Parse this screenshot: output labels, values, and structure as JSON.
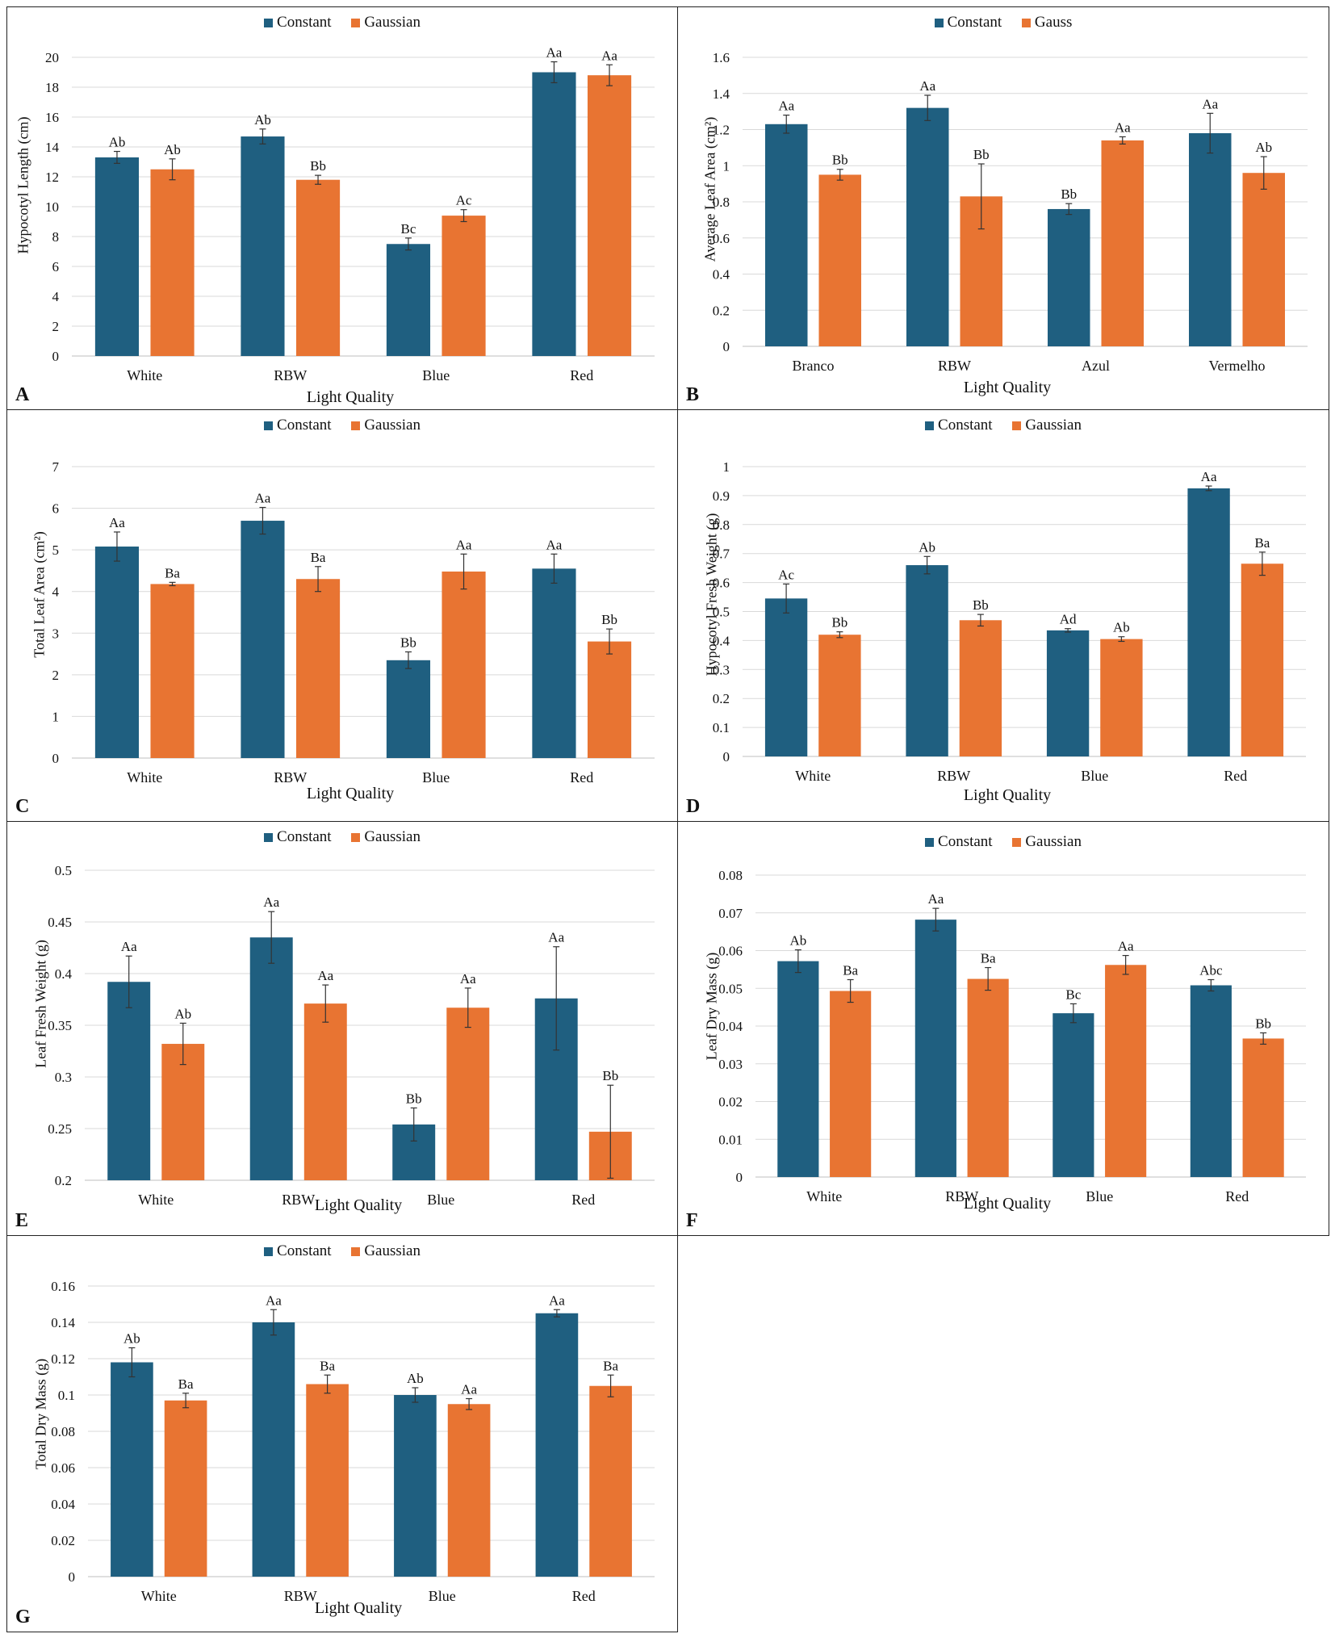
{
  "colors": {
    "constant": "#1f5f80",
    "gaussian": "#e87432",
    "grid": "#d9d9d9",
    "axis": "#bfbfbf"
  },
  "chart_data": [
    {
      "type": "bar",
      "panel": "A",
      "ylabel": "Hypocotyl Length (cm)",
      "xlabel": "Light Quality",
      "legend": [
        "Constant",
        "Gaussian"
      ],
      "categories": [
        "White",
        "RBW",
        "Blue",
        "Red"
      ],
      "ylim": [
        0,
        20
      ],
      "ystep": 2,
      "decimals": 0,
      "series": [
        {
          "name": "Constant",
          "values": [
            13.3,
            14.7,
            7.5,
            19.0
          ],
          "errors": [
            0.4,
            0.5,
            0.4,
            0.7
          ],
          "labels": [
            "Ab",
            "Ab",
            "Bc",
            "Aa"
          ]
        },
        {
          "name": "Gaussian",
          "values": [
            12.5,
            11.8,
            9.4,
            18.8
          ],
          "errors": [
            0.7,
            0.3,
            0.4,
            0.7
          ],
          "labels": [
            "Ab",
            "Bb",
            "Ac",
            "Aa"
          ]
        }
      ]
    },
    {
      "type": "bar",
      "panel": "B",
      "ylabel": "Average Leaf Area (cm²)",
      "xlabel": "Light Quality",
      "legend": [
        "Constant",
        "Gauss"
      ],
      "categories": [
        "Branco",
        "RBW",
        "Azul",
        "Vermelho"
      ],
      "ylim": [
        0,
        1.6
      ],
      "ystep": 0.2,
      "decimals": 1,
      "series": [
        {
          "name": "Constant",
          "values": [
            1.23,
            1.32,
            0.76,
            1.18
          ],
          "errors": [
            0.05,
            0.07,
            0.03,
            0.11
          ],
          "labels": [
            "Aa",
            "Aa",
            "Bb",
            "Aa"
          ]
        },
        {
          "name": "Gauss",
          "values": [
            0.95,
            0.83,
            1.14,
            0.96
          ],
          "errors": [
            0.03,
            0.18,
            0.02,
            0.09
          ],
          "labels": [
            "Bb",
            "Bb",
            "Aa",
            "Ab"
          ]
        }
      ]
    },
    {
      "type": "bar",
      "panel": "C",
      "ylabel": "Total Leaf Area (cm²)",
      "xlabel": "Light Quality",
      "legend": [
        "Constant",
        "Gaussian"
      ],
      "categories": [
        "White",
        "RBW",
        "Blue",
        "Red"
      ],
      "ylim": [
        0,
        7
      ],
      "ystep": 1,
      "decimals": 0,
      "series": [
        {
          "name": "Constant",
          "values": [
            5.08,
            5.7,
            2.35,
            4.55
          ],
          "errors": [
            0.35,
            0.32,
            0.2,
            0.35
          ],
          "labels": [
            "Aa",
            "Aa",
            "Bb",
            "Aa"
          ]
        },
        {
          "name": "Gaussian",
          "values": [
            4.18,
            4.3,
            4.48,
            2.8
          ],
          "errors": [
            0.04,
            0.3,
            0.42,
            0.3
          ],
          "labels": [
            "Ba",
            "Ba",
            "Aa",
            "Bb"
          ]
        }
      ]
    },
    {
      "type": "bar",
      "panel": "D",
      "ylabel": "Hypocotyl Fresh Weight (g)",
      "xlabel": "Light Quality",
      "legend": [
        "Constant",
        "Gaussian"
      ],
      "categories": [
        "White",
        "RBW",
        "Blue",
        "Red"
      ],
      "ylim": [
        0,
        1
      ],
      "ystep": 0.1,
      "decimals": 1,
      "series": [
        {
          "name": "Constant",
          "values": [
            0.545,
            0.66,
            0.435,
            0.925
          ],
          "errors": [
            0.05,
            0.03,
            0.006,
            0.008
          ],
          "labels": [
            "Ac",
            "Ab",
            "Ad",
            "Aa"
          ]
        },
        {
          "name": "Gaussian",
          "values": [
            0.42,
            0.47,
            0.405,
            0.665
          ],
          "errors": [
            0.01,
            0.02,
            0.008,
            0.04
          ],
          "labels": [
            "Bb",
            "Bb",
            "Ab",
            "Ba"
          ]
        }
      ]
    },
    {
      "type": "bar",
      "panel": "E",
      "ylabel": "Leaf Fresh Weight (g)",
      "xlabel": "Light Quality",
      "legend": [
        "Constant",
        "Gaussian"
      ],
      "categories": [
        "White",
        "RBW",
        "Blue",
        "Red"
      ],
      "ylim": [
        0.2,
        0.5
      ],
      "ystep": 0.05,
      "decimals": 2,
      "series": [
        {
          "name": "Constant",
          "values": [
            0.392,
            0.435,
            0.254,
            0.376
          ],
          "errors": [
            0.025,
            0.025,
            0.016,
            0.05
          ],
          "labels": [
            "Aa",
            "Aa",
            "Bb",
            "Aa"
          ]
        },
        {
          "name": "Gaussian",
          "values": [
            0.332,
            0.371,
            0.367,
            0.247
          ],
          "errors": [
            0.02,
            0.018,
            0.019,
            0.045
          ],
          "labels": [
            "Ab",
            "Aa",
            "Aa",
            "Bb"
          ]
        }
      ]
    },
    {
      "type": "bar",
      "panel": "F",
      "ylabel": "Leaf Dry Mass  (g)",
      "xlabel": "Light Quality",
      "legend": [
        "Constant",
        "Gaussian"
      ],
      "categories": [
        "White",
        "RBW",
        "Blue",
        "Red"
      ],
      "ylim": [
        0,
        0.08
      ],
      "ystep": 0.01,
      "decimals": 2,
      "series": [
        {
          "name": "Constant",
          "values": [
            0.0572,
            0.0682,
            0.0434,
            0.0508
          ],
          "errors": [
            0.003,
            0.003,
            0.0025,
            0.0015
          ],
          "labels": [
            "Ab",
            "Aa",
            "Bc",
            "Abc"
          ]
        },
        {
          "name": "Gaussian",
          "values": [
            0.0493,
            0.0525,
            0.0562,
            0.0367
          ],
          "errors": [
            0.003,
            0.003,
            0.0025,
            0.0015
          ],
          "labels": [
            "Ba",
            "Ba",
            "Aa",
            "Bb"
          ]
        }
      ]
    },
    {
      "type": "bar",
      "panel": "G",
      "ylabel": "Total Dry Mass (g)",
      "xlabel": "Light Quality",
      "legend": [
        "Constant",
        "Gaussian"
      ],
      "categories": [
        "White",
        "RBW",
        "Blue",
        "Red"
      ],
      "ylim": [
        0,
        0.16
      ],
      "ystep": 0.02,
      "decimals": 2,
      "series": [
        {
          "name": "Constant",
          "values": [
            0.118,
            0.14,
            0.1,
            0.145
          ],
          "errors": [
            0.008,
            0.007,
            0.004,
            0.002
          ],
          "labels": [
            "Ab",
            "Aa",
            "Ab",
            "Aa"
          ]
        },
        {
          "name": "Gaussian",
          "values": [
            0.097,
            0.106,
            0.095,
            0.105
          ],
          "errors": [
            0.004,
            0.005,
            0.003,
            0.006
          ],
          "labels": [
            "Ba",
            "Ba",
            "Aa",
            "Ba"
          ]
        }
      ]
    }
  ]
}
